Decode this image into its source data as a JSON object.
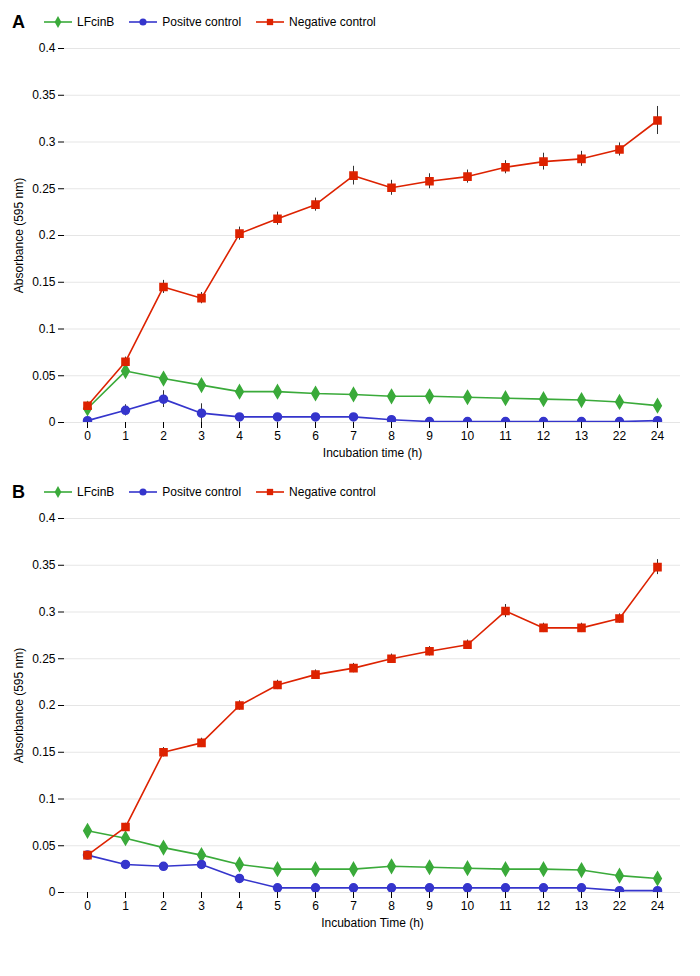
{
  "chart_data": [
    {
      "type": "line",
      "title": "A",
      "x_label": "Incubation time (h)",
      "y_label": "Absorbance (595 nm)",
      "categories": [
        "0",
        "1",
        "2",
        "3",
        "4",
        "5",
        "6",
        "7",
        "8",
        "9",
        "10",
        "11",
        "12",
        "13",
        "22",
        "24"
      ],
      "series": [
        {
          "name": "LFcinB",
          "color": "#3aaa3a",
          "marker": "diamond",
          "values": [
            0.015,
            0.055,
            0.047,
            0.04,
            0.033,
            0.033,
            0.031,
            0.03,
            0.028,
            0.028,
            0.027,
            0.026,
            0.025,
            0.024,
            0.022,
            0.018
          ],
          "errors": [
            0.003,
            0.004,
            0.004,
            0.003,
            0.003,
            0.003,
            0.003,
            0.003,
            0.003,
            0.003,
            0.003,
            0.004,
            0.003,
            0.003,
            0.003,
            0.003
          ]
        },
        {
          "name": "Positve control",
          "color": "#3535cc",
          "marker": "circle",
          "values": [
            0.002,
            0.013,
            0.025,
            0.01,
            0.006,
            0.006,
            0.006,
            0.006,
            0.003,
            0.001,
            0.001,
            0.001,
            0.001,
            0.001,
            0.001,
            0.002
          ],
          "errors": [
            0.001,
            0.006,
            0.009,
            0.01,
            0.003,
            0.003,
            0.003,
            0.003,
            0.003,
            0.001,
            0.001,
            0.001,
            0.001,
            0.001,
            0.001,
            0.001
          ]
        },
        {
          "name": "Negative control",
          "color": "#dd2200",
          "marker": "square",
          "values": [
            0.018,
            0.065,
            0.145,
            0.133,
            0.202,
            0.218,
            0.233,
            0.264,
            0.251,
            0.258,
            0.263,
            0.273,
            0.279,
            0.282,
            0.292,
            0.323
          ],
          "errors": [
            0.003,
            0.005,
            0.007,
            0.006,
            0.007,
            0.007,
            0.007,
            0.01,
            0.008,
            0.008,
            0.007,
            0.007,
            0.009,
            0.008,
            0.007,
            0.015
          ]
        }
      ],
      "ylim": [
        0,
        0.4
      ],
      "yticks": [
        0,
        0.05,
        0.1,
        0.15,
        0.2,
        0.25,
        0.3,
        0.35,
        0.4
      ],
      "grid": true,
      "legend": "upper left"
    },
    {
      "type": "line",
      "title": "B",
      "x_label": "Incubation Time (h)",
      "y_label": "Absorbance (595 nm)",
      "categories": [
        "0",
        "1",
        "2",
        "3",
        "4",
        "5",
        "6",
        "7",
        "8",
        "9",
        "10",
        "11",
        "12",
        "13",
        "22",
        "24"
      ],
      "series": [
        {
          "name": "LFcinB",
          "color": "#3aaa3a",
          "marker": "diamond",
          "values": [
            0.066,
            0.058,
            0.048,
            0.04,
            0.03,
            0.025,
            0.025,
            0.025,
            0.028,
            0.027,
            0.026,
            0.025,
            0.025,
            0.024,
            0.018,
            0.015
          ],
          "errors": [
            0.003,
            0.003,
            0.003,
            0.003,
            0.003,
            0.003,
            0.003,
            0.003,
            0.003,
            0.003,
            0.003,
            0.004,
            0.003,
            0.003,
            0.003,
            0.003
          ]
        },
        {
          "name": "Positve control",
          "color": "#3535cc",
          "marker": "circle",
          "values": [
            0.04,
            0.03,
            0.028,
            0.03,
            0.015,
            0.005,
            0.005,
            0.005,
            0.005,
            0.005,
            0.005,
            0.005,
            0.005,
            0.005,
            0.002,
            0.002
          ],
          "errors": [
            0.003,
            0.003,
            0.003,
            0.003,
            0.003,
            0.002,
            0.002,
            0.002,
            0.002,
            0.002,
            0.002,
            0.002,
            0.002,
            0.002,
            0.002,
            0.002
          ]
        },
        {
          "name": "Negative control",
          "color": "#dd2200",
          "marker": "square",
          "values": [
            0.04,
            0.07,
            0.15,
            0.16,
            0.2,
            0.222,
            0.233,
            0.24,
            0.25,
            0.258,
            0.265,
            0.301,
            0.283,
            0.283,
            0.293,
            0.348
          ],
          "errors": [
            0.003,
            0.004,
            0.005,
            0.005,
            0.005,
            0.005,
            0.005,
            0.005,
            0.005,
            0.005,
            0.005,
            0.007,
            0.005,
            0.005,
            0.005,
            0.008
          ]
        }
      ],
      "ylim": [
        0,
        0.4
      ],
      "yticks": [
        0,
        0.05,
        0.1,
        0.15,
        0.2,
        0.25,
        0.3,
        0.35,
        0.4
      ],
      "grid": true,
      "legend": "upper left"
    }
  ]
}
